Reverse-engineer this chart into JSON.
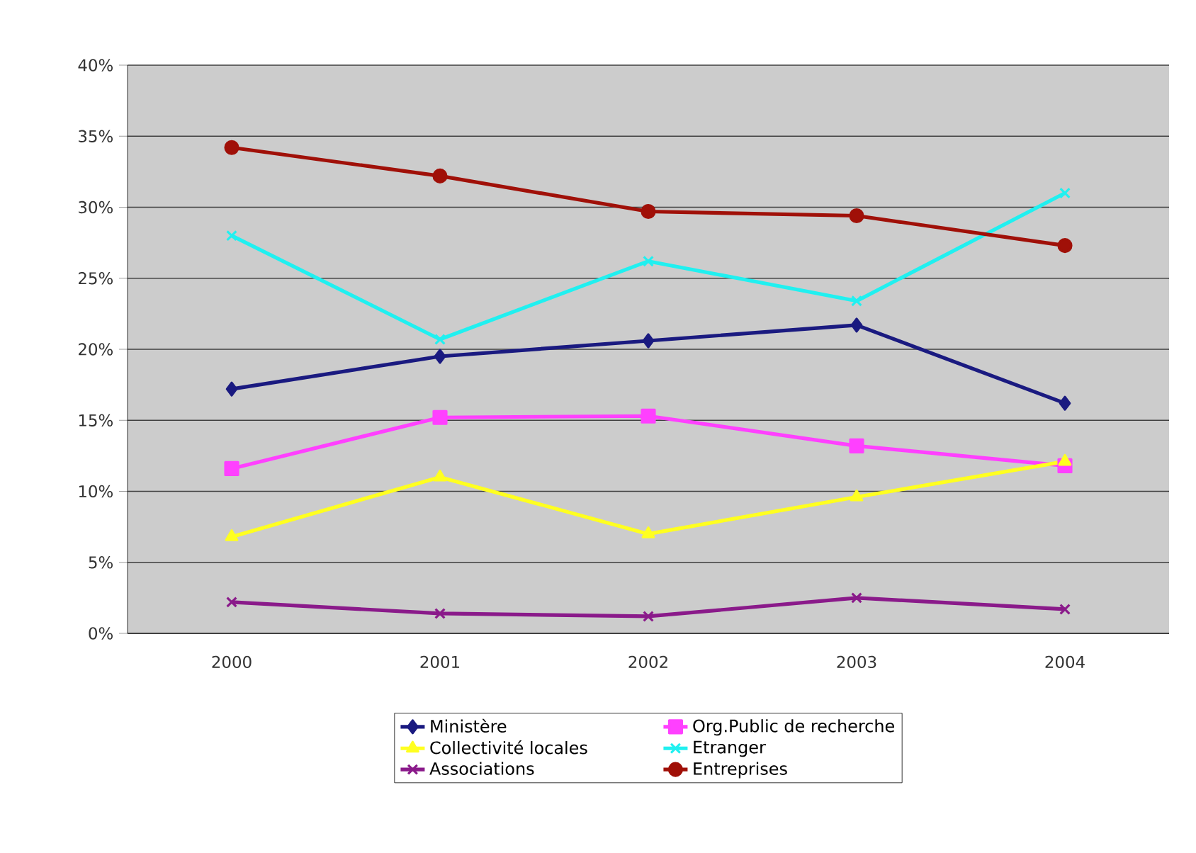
{
  "chart_data": {
    "type": "line",
    "categories": [
      "2000",
      "2001",
      "2002",
      "2003",
      "2004"
    ],
    "ylim": [
      0,
      40
    ],
    "yticks": [
      {
        "value": 0,
        "label": "0%"
      },
      {
        "value": 5,
        "label": "5%"
      },
      {
        "value": 10,
        "label": "10%"
      },
      {
        "value": 15,
        "label": "15%"
      },
      {
        "value": 20,
        "label": "20%"
      },
      {
        "value": 25,
        "label": "25%"
      },
      {
        "value": 30,
        "label": "30%"
      },
      {
        "value": 35,
        "label": "35%"
      },
      {
        "value": 40,
        "label": "40%"
      }
    ],
    "grid": "y",
    "legend": "bottom",
    "line_style": "solid",
    "series": [
      {
        "name": "Ministère",
        "color": "#1a1a80",
        "marker": "diamond",
        "values": [
          17.2,
          19.5,
          20.6,
          21.7,
          16.2
        ]
      },
      {
        "name": "Org.Public de recherche",
        "color": "#ff40ff",
        "marker": "square",
        "values": [
          11.6,
          15.2,
          15.3,
          13.2,
          11.8
        ]
      },
      {
        "name": "Collectivité locales",
        "color": "#ffff20",
        "marker": "triangle",
        "values": [
          6.8,
          11.0,
          7.0,
          9.6,
          12.1
        ]
      },
      {
        "name": "Etranger",
        "color": "#20f0f0",
        "marker": "cross",
        "values": [
          28.0,
          20.7,
          26.2,
          23.4,
          31.0
        ]
      },
      {
        "name": "Associations",
        "color": "#8a1a8a",
        "marker": "cross",
        "values": [
          2.2,
          1.4,
          1.2,
          2.5,
          1.7
        ]
      },
      {
        "name": "Entreprises",
        "color": "#a01008",
        "marker": "circle",
        "values": [
          34.2,
          32.2,
          29.7,
          29.4,
          27.3
        ]
      }
    ]
  }
}
